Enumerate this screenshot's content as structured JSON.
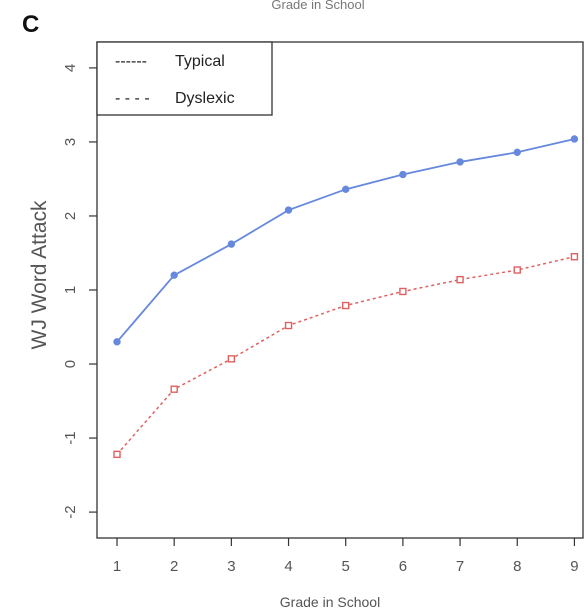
{
  "top_caption": "Grade in School",
  "panel_label": "C",
  "chart_data": {
    "type": "line",
    "title": "",
    "xlabel": "Grade in School",
    "ylabel": "WJ Word Attack",
    "x": [
      1,
      2,
      3,
      4,
      5,
      6,
      7,
      8,
      9
    ],
    "xlim": [
      0.65,
      9.15
    ],
    "ylim": [
      -2.35,
      4.35
    ],
    "xticks": [
      "1",
      "2",
      "3",
      "4",
      "5",
      "6",
      "7",
      "8",
      "9"
    ],
    "yticks": [
      "-2",
      "-1",
      "0",
      "1",
      "2",
      "3",
      "4"
    ],
    "grid": false,
    "legend_position": "top-left",
    "series": [
      {
        "name": "Typical",
        "line_style": "solid",
        "marker": "filled-circle",
        "color": "#6688dd",
        "values": [
          0.3,
          1.2,
          1.62,
          2.08,
          2.36,
          2.56,
          2.73,
          2.86,
          3.04
        ]
      },
      {
        "name": "Dyslexic",
        "line_style": "dashed",
        "marker": "open-square",
        "color": "#e06060",
        "values": [
          -1.22,
          -0.34,
          0.07,
          0.52,
          0.79,
          0.98,
          1.14,
          1.27,
          1.45
        ]
      }
    ],
    "legend_entries": [
      {
        "dash": "------",
        "label": "Typical"
      },
      {
        "dash": "- - - -",
        "label": "Dyslexic"
      }
    ]
  }
}
